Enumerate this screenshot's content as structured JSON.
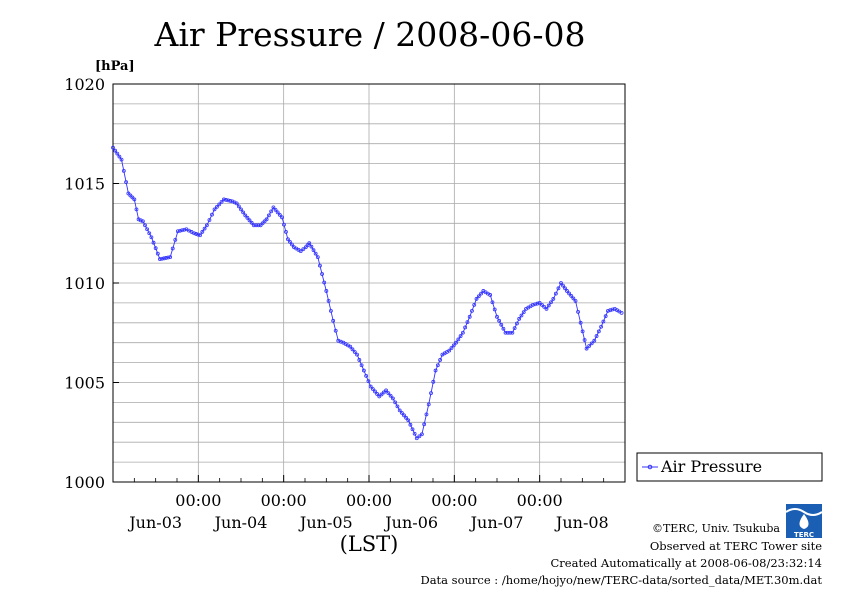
{
  "chart_data": {
    "type": "line",
    "title": "Air Pressure / 2008-06-08",
    "ylabel": "[hPa]",
    "xlabel": "(LST)",
    "ylim": [
      1000,
      1020
    ],
    "xlim": [
      0.0,
      6.0
    ],
    "yticks": [
      "1000",
      "1005",
      "1010",
      "1015",
      "1020"
    ],
    "xticks": [
      {
        "x": 1.0,
        "label": "00:00",
        "date": "Jun-03"
      },
      {
        "x": 2.0,
        "label": "00:00",
        "date": "Jun-04"
      },
      {
        "x": 3.0,
        "label": "00:00",
        "date": "Jun-05"
      },
      {
        "x": 4.0,
        "label": "00:00",
        "date": "Jun-06"
      },
      {
        "x": 5.0,
        "label": "00:00",
        "date": "Jun-07"
      },
      {
        "x": 6.0,
        "label": "",
        "date": "Jun-08"
      }
    ],
    "grid": true,
    "legend_position": "right",
    "series": [
      {
        "name": "Air Pressure",
        "color": "#3333ff",
        "points": [
          [
            0.0,
            1016.8
          ],
          [
            0.1,
            1016.2
          ],
          [
            0.18,
            1014.5
          ],
          [
            0.25,
            1014.2
          ],
          [
            0.3,
            1013.2
          ],
          [
            0.35,
            1013.1
          ],
          [
            0.45,
            1012.3
          ],
          [
            0.55,
            1011.2
          ],
          [
            0.67,
            1011.3
          ],
          [
            0.76,
            1012.6
          ],
          [
            0.86,
            1012.7
          ],
          [
            0.95,
            1012.5
          ],
          [
            1.02,
            1012.4
          ],
          [
            1.1,
            1012.9
          ],
          [
            1.19,
            1013.7
          ],
          [
            1.3,
            1014.2
          ],
          [
            1.4,
            1014.1
          ],
          [
            1.45,
            1014.0
          ],
          [
            1.55,
            1013.4
          ],
          [
            1.65,
            1012.9
          ],
          [
            1.73,
            1012.9
          ],
          [
            1.8,
            1013.2
          ],
          [
            1.88,
            1013.8
          ],
          [
            1.98,
            1013.3
          ],
          [
            2.05,
            1012.2
          ],
          [
            2.12,
            1011.8
          ],
          [
            2.2,
            1011.6
          ],
          [
            2.26,
            1011.8
          ],
          [
            2.3,
            1012.0
          ],
          [
            2.4,
            1011.3
          ],
          [
            2.5,
            1009.6
          ],
          [
            2.58,
            1008.1
          ],
          [
            2.64,
            1007.1
          ],
          [
            2.7,
            1007.0
          ],
          [
            2.78,
            1006.8
          ],
          [
            2.86,
            1006.4
          ],
          [
            2.94,
            1005.6
          ],
          [
            3.02,
            1004.8
          ],
          [
            3.12,
            1004.3
          ],
          [
            3.2,
            1004.6
          ],
          [
            3.28,
            1004.2
          ],
          [
            3.36,
            1003.6
          ],
          [
            3.46,
            1003.1
          ],
          [
            3.56,
            1002.2
          ],
          [
            3.62,
            1002.4
          ],
          [
            3.7,
            1003.9
          ],
          [
            3.78,
            1005.6
          ],
          [
            3.86,
            1006.4
          ],
          [
            3.94,
            1006.6
          ],
          [
            4.02,
            1007.0
          ],
          [
            4.1,
            1007.5
          ],
          [
            4.18,
            1008.3
          ],
          [
            4.26,
            1009.2
          ],
          [
            4.34,
            1009.6
          ],
          [
            4.42,
            1009.4
          ],
          [
            4.5,
            1008.3
          ],
          [
            4.6,
            1007.5
          ],
          [
            4.68,
            1007.5
          ],
          [
            4.76,
            1008.2
          ],
          [
            4.84,
            1008.7
          ],
          [
            4.92,
            1008.9
          ],
          [
            5.0,
            1009.0
          ],
          [
            5.08,
            1008.7
          ],
          [
            5.16,
            1009.2
          ],
          [
            5.25,
            1010.0
          ],
          [
            5.32,
            1009.6
          ],
          [
            5.42,
            1009.1
          ],
          [
            5.48,
            1008.0
          ],
          [
            5.55,
            1006.7
          ],
          [
            5.64,
            1007.1
          ],
          [
            5.72,
            1007.8
          ],
          [
            5.8,
            1008.6
          ],
          [
            5.88,
            1008.7
          ],
          [
            5.96,
            1008.5
          ]
        ]
      }
    ]
  },
  "footer": {
    "copyright": "©TERC, Univ. Tsukuba",
    "observed": "Observed at TERC Tower site",
    "created": "Created Automatically at 2008-06-08/23:32:14",
    "source": "Data source : /home/hojyo/new/TERC-data/sorted_data/MET.30m.dat"
  },
  "logo": {
    "text": "TERC",
    "color": "#1a5fb4"
  }
}
